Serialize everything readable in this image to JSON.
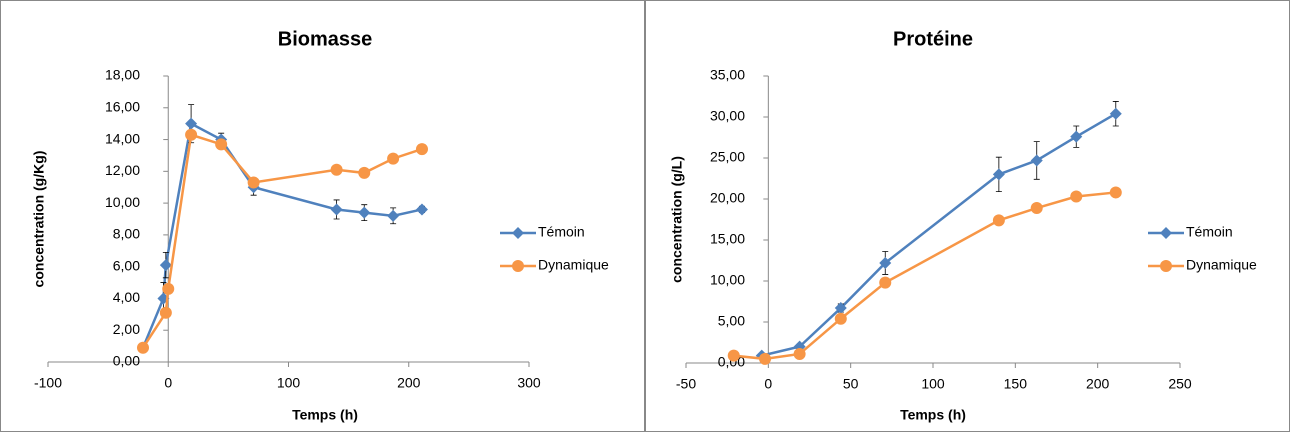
{
  "chart_data": [
    {
      "type": "line",
      "title": "Biomasse",
      "x_label": "Temps (h)",
      "y_label": "concentration (g/Kg)",
      "xlim": [
        -100,
        300
      ],
      "xticks": [
        -100,
        0,
        100,
        200,
        300
      ],
      "ylim": [
        0,
        18
      ],
      "yticks": [
        {
          "value": 0,
          "label": "0,00"
        },
        {
          "value": 2,
          "label": "2,00"
        },
        {
          "value": 4,
          "label": "4,00"
        },
        {
          "value": 6,
          "label": "6,00"
        },
        {
          "value": 8,
          "label": "8,00"
        },
        {
          "value": 10,
          "label": "10,00"
        },
        {
          "value": 12,
          "label": "12,00"
        },
        {
          "value": 14,
          "label": "14,00"
        },
        {
          "value": 16,
          "label": "16,00"
        },
        {
          "value": 18,
          "label": "18,00"
        }
      ],
      "grid": false,
      "legend": "right",
      "series": [
        {
          "name": "Témoin",
          "color": "#4f81bd",
          "marker": "diamond",
          "x": [
            -21,
            -4,
            -2,
            19,
            44,
            71,
            140,
            163,
            187,
            211
          ],
          "values": [
            0.9,
            4.0,
            6.1,
            15.0,
            14.0,
            11.0,
            9.6,
            9.4,
            9.2,
            9.6
          ],
          "errors": [
            0.2,
            1.0,
            0.8,
            1.2,
            0.4,
            0.5,
            0.6,
            0.5,
            0.5,
            0.2
          ]
        },
        {
          "name": "Dynamique",
          "color": "#f79646",
          "marker": "circle",
          "x": [
            -21,
            -2,
            0,
            19,
            44,
            71,
            140,
            163,
            187,
            211
          ],
          "values": [
            0.9,
            3.1,
            4.6,
            14.3,
            13.7,
            11.3,
            12.1,
            11.9,
            12.8,
            13.4
          ]
        }
      ]
    },
    {
      "type": "line",
      "title": "Protéine",
      "x_label": "Temps (h)",
      "y_label": "concentration (g/L)",
      "xlim": [
        -50,
        250
      ],
      "xticks": [
        -50,
        0,
        50,
        100,
        150,
        200,
        250
      ],
      "ylim": [
        0,
        35
      ],
      "yticks": [
        {
          "value": 0,
          "label": "0,00"
        },
        {
          "value": 5,
          "label": "5,00"
        },
        {
          "value": 10,
          "label": "10,00"
        },
        {
          "value": 15,
          "label": "15,00"
        },
        {
          "value": 20,
          "label": "20,00"
        },
        {
          "value": 25,
          "label": "25,00"
        },
        {
          "value": 30,
          "label": "30,00"
        },
        {
          "value": 35,
          "label": "35,00"
        }
      ],
      "grid": false,
      "legend": "right",
      "series": [
        {
          "name": "Témoin",
          "color": "#4f81bd",
          "marker": "diamond",
          "x": [
            -4,
            19,
            44,
            71,
            140,
            163,
            187,
            211
          ],
          "values": [
            0.9,
            2.0,
            6.7,
            12.2,
            23.0,
            24.7,
            27.6,
            30.4
          ],
          "errors": [
            0.2,
            0.3,
            0.5,
            1.4,
            2.1,
            2.3,
            1.3,
            1.5
          ]
        },
        {
          "name": "Dynamique",
          "color": "#f79646",
          "marker": "circle",
          "x": [
            -21,
            -2,
            19,
            44,
            71,
            140,
            163,
            187,
            211
          ],
          "values": [
            0.9,
            0.5,
            1.1,
            5.4,
            9.8,
            17.4,
            18.9,
            20.3,
            20.8
          ]
        }
      ]
    }
  ]
}
